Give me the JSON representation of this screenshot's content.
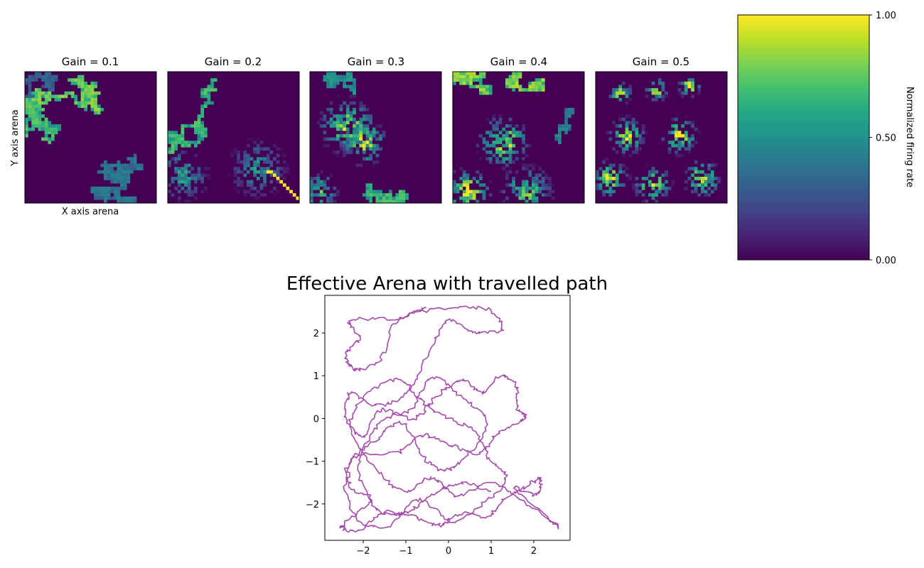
{
  "chart_data": [
    {
      "type": "heatmap",
      "title": "Gain = 0.1",
      "xlabel": "X axis arena",
      "ylabel": "Y axis arena",
      "pattern": "sparse-path",
      "seed": 11
    },
    {
      "type": "heatmap",
      "title": "Gain = 0.2",
      "xlabel": "",
      "ylabel": "",
      "pattern": "edge-bands",
      "seed": 23
    },
    {
      "type": "heatmap",
      "title": "Gain = 0.3",
      "xlabel": "",
      "ylabel": "",
      "pattern": "two-fields",
      "seed": 37
    },
    {
      "type": "heatmap",
      "title": "Gain = 0.4",
      "xlabel": "",
      "ylabel": "",
      "pattern": "grid-fields",
      "seed": 41
    },
    {
      "type": "heatmap",
      "title": "Gain = 0.5",
      "xlabel": "",
      "ylabel": "",
      "pattern": "dense-grid-fields",
      "seed": 53
    },
    {
      "type": "colorbar",
      "label": "Normalized firing rate",
      "colormap": "viridis",
      "range": [
        0,
        1
      ],
      "ticks": [
        0,
        0.5,
        1
      ],
      "tick_labels": [
        "0.00",
        "0.50",
        "1.00"
      ]
    },
    {
      "type": "line",
      "title": "Effective Arena with travelled path",
      "xlabel": "",
      "ylabel": "",
      "xlim": [
        -2.9,
        2.85
      ],
      "ylim": [
        -2.85,
        2.88
      ],
      "xticks": [
        -2,
        -1,
        0,
        1,
        2
      ],
      "yticks": [
        -2,
        -1,
        0,
        1,
        2
      ],
      "xtick_labels": [
        "−2",
        "−1",
        "0",
        "1",
        "2"
      ],
      "ytick_labels": [
        "−2",
        "−1",
        "0",
        "1",
        "2"
      ],
      "line_color": "#a54aac",
      "waypoints": [
        [
          -0.5,
          2.63
        ],
        [
          -1.2,
          2.35
        ],
        [
          -2.3,
          2.3
        ],
        [
          -2.1,
          1.9
        ],
        [
          -2.4,
          1.5
        ],
        [
          -2.2,
          1.15
        ],
        [
          -1.6,
          1.4
        ],
        [
          -1.2,
          2.3
        ],
        [
          -0.2,
          2.55
        ],
        [
          0.9,
          2.55
        ],
        [
          1.25,
          2.1
        ],
        [
          0.6,
          2.0
        ],
        [
          0.0,
          2.3
        ],
        [
          -0.5,
          1.5
        ],
        [
          -1.0,
          0.6
        ],
        [
          -1.7,
          0.3
        ],
        [
          -2.3,
          0.6
        ],
        [
          -2.4,
          0.0
        ],
        [
          -2.0,
          -0.4
        ],
        [
          -1.6,
          0.2
        ],
        [
          -0.8,
          0.0
        ],
        [
          -0.3,
          0.5
        ],
        [
          0.3,
          0.9
        ],
        [
          0.8,
          0.6
        ],
        [
          1.2,
          1.0
        ],
        [
          1.6,
          0.75
        ],
        [
          1.6,
          0.25
        ],
        [
          1.8,
          0.0
        ],
        [
          1.2,
          -0.3
        ],
        [
          0.7,
          -0.8
        ],
        [
          0.0,
          -0.6
        ],
        [
          -0.6,
          -0.4
        ],
        [
          -1.2,
          -0.8
        ],
        [
          -2.2,
          -0.9
        ],
        [
          -2.3,
          -1.6
        ],
        [
          -1.8,
          -1.9
        ],
        [
          -2.5,
          -2.5
        ],
        [
          -2.1,
          -2.6
        ],
        [
          -1.5,
          -2.2
        ],
        [
          -0.8,
          -2.3
        ],
        [
          -0.2,
          -2.5
        ],
        [
          0.3,
          -2.2
        ],
        [
          0.9,
          -2.3
        ],
        [
          1.3,
          -1.9
        ],
        [
          1.9,
          -1.55
        ],
        [
          2.15,
          -1.4
        ],
        [
          2.05,
          -1.8
        ],
        [
          1.55,
          -1.65
        ],
        [
          2.6,
          -2.55
        ],
        [
          1.7,
          -1.9
        ],
        [
          1.0,
          -1.5
        ],
        [
          0.2,
          -1.8
        ],
        [
          -0.4,
          -1.4
        ],
        [
          -1.0,
          -1.7
        ],
        [
          -1.6,
          -1.3
        ],
        [
          -2.3,
          -0.3
        ],
        [
          -2.0,
          0.5
        ],
        [
          -1.2,
          0.9
        ],
        [
          -0.6,
          0.4
        ],
        [
          0.0,
          0.0
        ],
        [
          0.6,
          -0.3
        ],
        [
          1.0,
          -1.0
        ],
        [
          1.35,
          -1.4
        ],
        [
          0.8,
          -2.0
        ],
        [
          0.1,
          -2.4
        ],
        [
          -0.7,
          -1.9
        ],
        [
          -1.4,
          -2.5
        ],
        [
          -2.2,
          -2.3
        ],
        [
          -2.4,
          -1.2
        ],
        [
          -1.7,
          -0.5
        ],
        [
          -1.1,
          -0.1
        ],
        [
          -0.6,
          -0.9
        ],
        [
          -0.1,
          -1.2
        ],
        [
          0.4,
          -0.9
        ],
        [
          0.9,
          -0.1
        ],
        [
          0.3,
          0.5
        ],
        [
          -0.4,
          0.95
        ],
        [
          -0.9,
          0.2
        ],
        [
          -1.6,
          -0.1
        ],
        [
          -2.1,
          -1.1
        ],
        [
          -1.7,
          -2.1
        ],
        [
          -1.0,
          -2.2
        ],
        [
          -0.4,
          -1.8
        ],
        [
          0.3,
          -1.5
        ],
        [
          1.0,
          -1.7
        ]
      ]
    }
  ]
}
